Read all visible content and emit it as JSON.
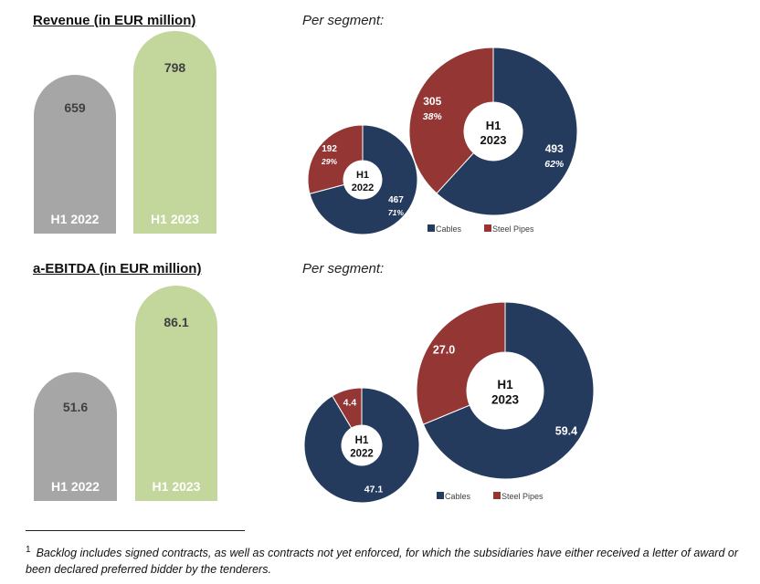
{
  "colors": {
    "cables": "#243b5e",
    "steel_pipes": "#943634",
    "bar_2022": "#a6a6a6",
    "bar_2023": "#c3d69b"
  },
  "chart_data": [
    {
      "type": "bar",
      "title": "Revenue (in EUR million)",
      "categories": [
        "H1 2022",
        "H1 2023"
      ],
      "values": [
        659,
        798
      ],
      "value_labels": [
        "659",
        "798"
      ]
    },
    {
      "type": "pie",
      "title": "Per segment:",
      "legend": [
        "Cables",
        "Steel Pipes"
      ],
      "legend_position": "bottom",
      "donuts": [
        {
          "center": [
            "H1",
            "2022"
          ],
          "slices": [
            {
              "name": "Cables",
              "value": 467,
              "label": "467",
              "pct": "71%"
            },
            {
              "name": "Steel Pipes",
              "value": 192,
              "label": "192",
              "pct": "29%"
            }
          ]
        },
        {
          "center": [
            "H1",
            "2023"
          ],
          "slices": [
            {
              "name": "Cables",
              "value": 493,
              "label": "493",
              "pct": "62%"
            },
            {
              "name": "Steel Pipes",
              "value": 305,
              "label": "305",
              "pct": "38%"
            }
          ]
        }
      ]
    },
    {
      "type": "bar",
      "title": "a-EBITDA (in EUR million)",
      "categories": [
        "H1 2022",
        "H1 2023"
      ],
      "values": [
        51.6,
        86.1
      ],
      "value_labels": [
        "51.6",
        "86.1"
      ]
    },
    {
      "type": "pie",
      "title": "Per segment:",
      "legend": [
        "Cables",
        "Steel Pipes"
      ],
      "legend_position": "bottom",
      "donuts": [
        {
          "center": [
            "H1",
            "2022"
          ],
          "slices": [
            {
              "name": "Cables",
              "value": 47.1,
              "label": "47.1",
              "pct": ""
            },
            {
              "name": "Steel Pipes",
              "value": 4.4,
              "label": "4.4",
              "pct": ""
            }
          ]
        },
        {
          "center": [
            "H1",
            "2023"
          ],
          "slices": [
            {
              "name": "Cables",
              "value": 59.4,
              "label": "59.4",
              "pct": ""
            },
            {
              "name": "Steel Pipes",
              "value": 27.0,
              "label": "27.0",
              "pct": ""
            }
          ]
        }
      ]
    }
  ],
  "footnote": {
    "marker": "1",
    "text": "Backlog includes signed contracts, as well as contracts not yet enforced, for which the subsidiaries have either received a letter of award or been declared preferred bidder by the tenderers."
  }
}
